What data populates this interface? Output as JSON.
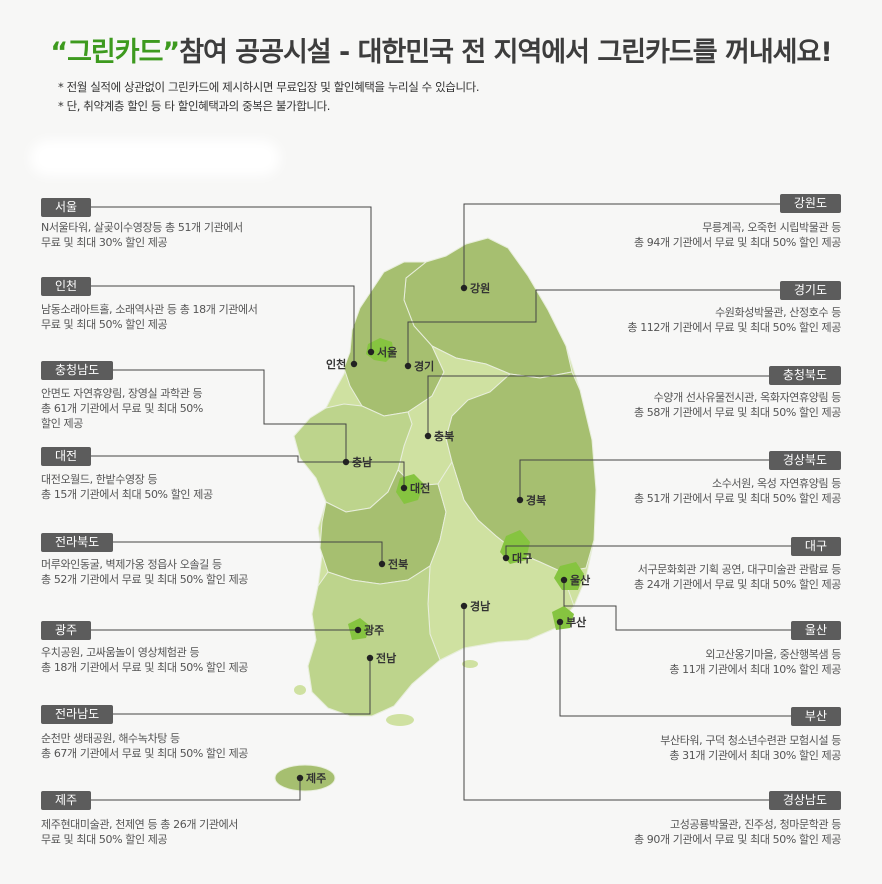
{
  "header": {
    "title_accent": "“그린카드”",
    "title_rest": "참여 공공시설 - 대한민국 전 지역에서 그린카드를 꺼내세요!",
    "notes": [
      "* 전월 실적에 상관없이 그린카드에 제시하시면 무료입장 및 할인혜택을 누리실 수 있습니다.",
      "* 단, 취약계층 할인 등 타 할인혜택과의 중복은 불가합니다."
    ]
  },
  "colors": {
    "pill": "#5c5c5c",
    "accent": "#3d9a1e",
    "region_dark": "#a6bf70",
    "region_mid": "#bdd48c",
    "region_light": "#cfe1a1",
    "city": "#86c440"
  },
  "regions_left": [
    {
      "name": "서울",
      "lines": [
        "N서울타워, 살곶이수영장등 총 51개 기관에서",
        "무료 및 최대 30% 할인 제공"
      ]
    },
    {
      "name": "인천",
      "lines": [
        "남동소래아트홀, 소래역사관 등 총 18개 기관에서",
        "무료 및 최대 50% 할인 제공"
      ]
    },
    {
      "name": "충청남도",
      "lines": [
        "안면도 자연휴양림, 장영실 과학관 등",
        "총 61개 기관에서 무료 및 최대 50%",
        "할인 제공"
      ]
    },
    {
      "name": "대전",
      "lines": [
        "대전오월드, 한밭수영장 등",
        "총 15개 기관에서 최대 50% 할인 제공"
      ]
    },
    {
      "name": "전라북도",
      "lines": [
        "머루와인동굴, 벽제가옹 정읍사 오솔길 등",
        "총 52개 기관에서 무료 및 최대 50% 할인 제공"
      ]
    },
    {
      "name": "광주",
      "lines": [
        "우치공원, 고싸움놀이 영상체험관 등",
        "총 18개 기관에서 무료 및 최대 50% 할인 제공"
      ]
    },
    {
      "name": "전라남도",
      "lines": [
        "순천만 생태공원, 해수녹차탕 등",
        "총 67개 기관에서 무료 및 최대 50% 할인 제공"
      ]
    },
    {
      "name": "제주",
      "lines": [
        "제주현대미술관, 천제연 등 총 26개 기관에서",
        "무료 및 최대 50% 할인 제공"
      ]
    }
  ],
  "regions_right": [
    {
      "name": "강원도",
      "lines": [
        "무릉계곡, 오죽헌 시립박물관 등",
        "총 94개 기관에서 무료 및 최대 50% 할인 제공"
      ]
    },
    {
      "name": "경기도",
      "lines": [
        "수원화성박물관, 산정호수 등",
        "총 112개 기관에서 무료 및 최대 50% 할인 제공"
      ]
    },
    {
      "name": "충청북도",
      "lines": [
        "수양개 선사유물전시관, 옥화자연휴양림 등",
        "총 58개 기관에서 무료 및 최대 50% 할인 제공"
      ]
    },
    {
      "name": "경상북도",
      "lines": [
        "소수서원, 옥성 자연휴양림 등",
        "총 51개 기관에서 무료 및 최대 50% 할인 제공"
      ]
    },
    {
      "name": "대구",
      "lines": [
        "서구문화회관 기획 공연, 대구미술관 관람료 등",
        "총 24개 기관에서 무료 및 최대 50% 할인 제공"
      ]
    },
    {
      "name": "울산",
      "lines": [
        "외고산옹기마을, 중산행복샘 등",
        "총 11개 기관에서 최대 10% 할인 제공"
      ]
    },
    {
      "name": "부산",
      "lines": [
        "부산타워, 구덕 청소년수련관 모험시설 등",
        "총 31개 기관에서 최대 30% 할인 제공"
      ]
    },
    {
      "name": "경상남도",
      "lines": [
        "고성공룡박물관, 진주성, 청마문학관 등",
        "총 90개 기관에서 무료 및 최대 50% 할인 제공"
      ]
    }
  ],
  "map_labels": {
    "seoul": "서울",
    "incheon": "인천",
    "gyeonggi": "경기",
    "gangwon": "강원",
    "chungbuk": "충북",
    "chungnam": "충남",
    "daejeon": "대전",
    "gyeongbuk": "경북",
    "daegu": "대구",
    "ulsan": "울산",
    "busan": "부산",
    "gyeongnam": "경남",
    "jeonbuk": "전북",
    "gwangju": "광주",
    "jeonnam": "전남",
    "jeju": "제주"
  }
}
